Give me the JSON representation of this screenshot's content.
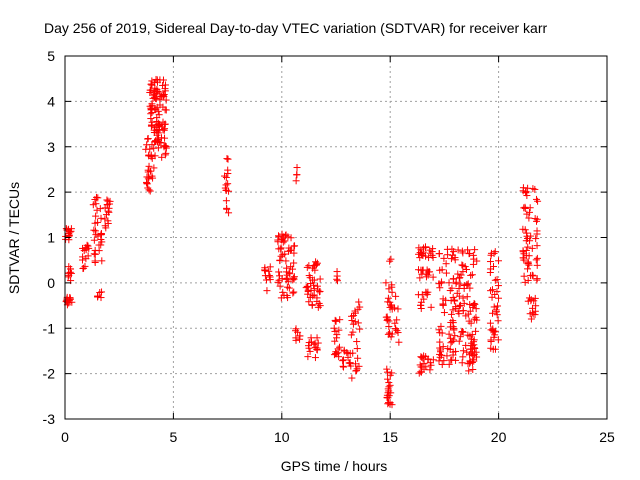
{
  "chart_data": {
    "type": "scatter",
    "title": "Day 256 of 2019, Sidereal Day-to-day VTEC variation (SDTVAR) for receiver karr",
    "xlabel": "GPS time / hours",
    "ylabel": "SDTVAR / TECUs",
    "xlim": [
      0,
      25
    ],
    "ylim": [
      -3,
      5
    ],
    "xticks": [
      "0",
      "5",
      "10",
      "15",
      "20",
      "25"
    ],
    "yticks": [
      "-3",
      "-2",
      "-1",
      "0",
      "1",
      "2",
      "3",
      "4",
      "5"
    ],
    "grid": true,
    "marker": "+",
    "color": "#ff0000",
    "clusters": [
      {
        "x": [
          0.0,
          0.3
        ],
        "y": [
          0.95,
          1.2
        ],
        "n": 14
      },
      {
        "x": [
          0.05,
          0.35
        ],
        "y": [
          -0.5,
          -0.3
        ],
        "n": 12
      },
      {
        "x": [
          0.1,
          0.3
        ],
        "y": [
          0.0,
          0.4
        ],
        "n": 10
      },
      {
        "x": [
          0.8,
          1.1
        ],
        "y": [
          0.1,
          1.0
        ],
        "n": 14
      },
      {
        "x": [
          1.3,
          1.7
        ],
        "y": [
          0.4,
          1.9
        ],
        "n": 30
      },
      {
        "x": [
          1.5,
          1.7
        ],
        "y": [
          -0.35,
          -0.2
        ],
        "n": 6
      },
      {
        "x": [
          1.8,
          2.1
        ],
        "y": [
          1.2,
          2.05
        ],
        "n": 16
      },
      {
        "x": [
          3.7,
          4.1
        ],
        "y": [
          2.0,
          3.2
        ],
        "n": 24
      },
      {
        "x": [
          3.9,
          4.7
        ],
        "y": [
          2.7,
          4.5
        ],
        "n": 110
      },
      {
        "x": [
          7.35,
          7.55
        ],
        "y": [
          1.4,
          2.75
        ],
        "n": 16
      },
      {
        "x": [
          9.2,
          9.5
        ],
        "y": [
          -0.2,
          0.55
        ],
        "n": 12
      },
      {
        "x": [
          9.8,
          10.6
        ],
        "y": [
          -0.4,
          1.1
        ],
        "n": 60
      },
      {
        "x": [
          10.6,
          10.85
        ],
        "y": [
          -1.3,
          -1.0
        ],
        "n": 8
      },
      {
        "x": [
          10.6,
          10.8
        ],
        "y": [
          2.1,
          2.55
        ],
        "n": 4
      },
      {
        "x": [
          11.1,
          11.8
        ],
        "y": [
          -0.6,
          0.5
        ],
        "n": 40
      },
      {
        "x": [
          11.2,
          11.8
        ],
        "y": [
          -1.7,
          -1.2
        ],
        "n": 16
      },
      {
        "x": [
          12.4,
          12.7
        ],
        "y": [
          -1.7,
          -0.8
        ],
        "n": 18
      },
      {
        "x": [
          12.5,
          12.6
        ],
        "y": [
          0.0,
          0.3
        ],
        "n": 4
      },
      {
        "x": [
          12.8,
          13.2
        ],
        "y": [
          -1.9,
          -1.4
        ],
        "n": 14
      },
      {
        "x": [
          13.2,
          13.6
        ],
        "y": [
          -2.1,
          -0.4
        ],
        "n": 24
      },
      {
        "x": [
          14.8,
          15.1
        ],
        "y": [
          -2.7,
          -1.9
        ],
        "n": 22
      },
      {
        "x": [
          14.8,
          15.1
        ],
        "y": [
          -1.2,
          0.8
        ],
        "n": 24
      },
      {
        "x": [
          15.2,
          15.4
        ],
        "y": [
          -1.4,
          -0.2
        ],
        "n": 10
      },
      {
        "x": [
          16.3,
          17.0
        ],
        "y": [
          0.55,
          0.8
        ],
        "n": 20
      },
      {
        "x": [
          16.3,
          17.0
        ],
        "y": [
          0.1,
          0.3
        ],
        "n": 14
      },
      {
        "x": [
          16.3,
          17.0
        ],
        "y": [
          -2.0,
          -1.6
        ],
        "n": 20
      },
      {
        "x": [
          16.3,
          16.9
        ],
        "y": [
          -0.6,
          -0.2
        ],
        "n": 12
      },
      {
        "x": [
          17.2,
          19.0
        ],
        "y": [
          -1.8,
          0.8
        ],
        "n": 160
      },
      {
        "x": [
          18.6,
          19.0
        ],
        "y": [
          -2.0,
          -1.2
        ],
        "n": 14
      },
      {
        "x": [
          19.6,
          20.0
        ],
        "y": [
          -1.5,
          0.7
        ],
        "n": 40
      },
      {
        "x": [
          21.1,
          21.8
        ],
        "y": [
          0.0,
          2.2
        ],
        "n": 60
      },
      {
        "x": [
          21.3,
          21.8
        ],
        "y": [
          -0.8,
          -0.3
        ],
        "n": 14
      }
    ]
  }
}
